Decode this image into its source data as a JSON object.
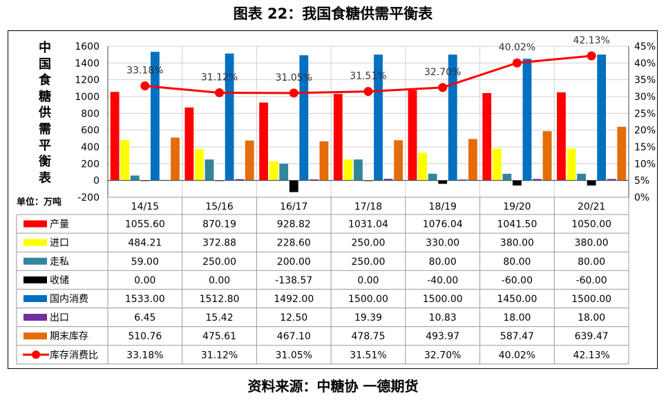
{
  "figure_title": "图表 22：我国食糖供需平衡表",
  "source_text": "资料来源：中糖协  一德期货",
  "chart_data": {
    "type": "bar",
    "title": "中国食糖供需平衡表",
    "title_chars": [
      "中",
      "国",
      "食",
      "糖",
      "供",
      "需",
      "平",
      "衡",
      "表"
    ],
    "unit_label": "单位：万吨",
    "categories": [
      "14/15",
      "15/16",
      "16/17",
      "17/18",
      "18/19",
      "19/20",
      "20/21"
    ],
    "ylim": [
      -200,
      1600
    ],
    "y_ticks": [
      "1600",
      "1400",
      "1200",
      "1000",
      "800",
      "600",
      "400",
      "200",
      "0",
      "-200"
    ],
    "y_tick_values": [
      1600,
      1400,
      1200,
      1000,
      800,
      600,
      400,
      200,
      0,
      -200
    ],
    "y2lim": [
      0,
      45
    ],
    "y2_ticks": [
      "45%",
      "40%",
      "35%",
      "30%",
      "25%",
      "20%",
      "15%",
      "10%",
      "5%",
      "0%"
    ],
    "y2_tick_values": [
      45,
      40,
      35,
      30,
      25,
      20,
      15,
      10,
      5,
      0
    ],
    "grid": true,
    "series": [
      {
        "name": "产量",
        "color": "#ff0000",
        "axis": "left",
        "kind": "bar",
        "values": [
          1055.6,
          870.19,
          928.82,
          1031.04,
          1076.04,
          1041.5,
          1050.0
        ],
        "labels": [
          "1055.60",
          "870.19",
          "928.82",
          "1031.04",
          "1076.04",
          "1041.50",
          "1050.00"
        ]
      },
      {
        "name": "进口",
        "color": "#ffff00",
        "axis": "left",
        "kind": "bar",
        "values": [
          484.21,
          372.88,
          228.6,
          250.0,
          330.0,
          380.0,
          380.0
        ],
        "labels": [
          "484.21",
          "372.88",
          "228.60",
          "250.00",
          "330.00",
          "380.00",
          "380.00"
        ]
      },
      {
        "name": "走私",
        "color": "#31859c",
        "axis": "left",
        "kind": "bar",
        "values": [
          59.0,
          250.0,
          200.0,
          250.0,
          80.0,
          80.0,
          80.0
        ],
        "labels": [
          "59.00",
          "250.00",
          "200.00",
          "250.00",
          "80.00",
          "80.00",
          "80.00"
        ]
      },
      {
        "name": "收储",
        "color": "#000000",
        "axis": "left",
        "kind": "bar",
        "values": [
          0.0,
          0.0,
          -138.57,
          0.0,
          -40.0,
          -60.0,
          -60.0
        ],
        "labels": [
          "0.00",
          "0.00",
          "-138.57",
          "0.00",
          "-40.00",
          "-60.00",
          "-60.00"
        ]
      },
      {
        "name": "国内消费",
        "color": "#0070c0",
        "axis": "left",
        "kind": "bar",
        "values": [
          1533.0,
          1512.8,
          1492.0,
          1500.0,
          1500.0,
          1450.0,
          1500.0
        ],
        "labels": [
          "1533.00",
          "1512.80",
          "1492.00",
          "1500.00",
          "1500.00",
          "1450.00",
          "1500.00"
        ]
      },
      {
        "name": "出口",
        "color": "#7030a0",
        "axis": "left",
        "kind": "bar",
        "values": [
          6.45,
          15.42,
          12.5,
          19.39,
          10.83,
          18.0,
          18.0
        ],
        "labels": [
          "6.45",
          "15.42",
          "12.50",
          "19.39",
          "10.83",
          "18.00",
          "18.00"
        ]
      },
      {
        "name": "期末库存",
        "color": "#e46c0a",
        "axis": "left",
        "kind": "bar",
        "values": [
          510.76,
          475.61,
          467.1,
          478.75,
          493.97,
          587.47,
          639.47
        ],
        "labels": [
          "510.76",
          "475.61",
          "467.10",
          "478.75",
          "493.97",
          "587.47",
          "639.47"
        ]
      },
      {
        "name": "库存消费比",
        "color": "#ff0000",
        "axis": "right",
        "kind": "line",
        "values": [
          33.18,
          31.12,
          31.05,
          31.51,
          32.7,
          40.02,
          42.13
        ],
        "labels": [
          "33.18%",
          "31.12%",
          "31.05%",
          "31.51%",
          "32.70%",
          "40.02%",
          "42.13%"
        ]
      }
    ]
  }
}
